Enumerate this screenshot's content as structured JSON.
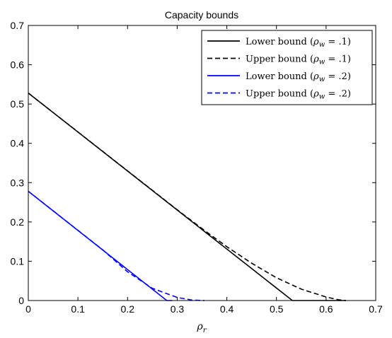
{
  "chart_data": {
    "type": "line",
    "title": "Capacity bounds",
    "xlabel": "ρ_r",
    "xlabel_main": "ρ",
    "xlabel_sub": "r",
    "ylabel": "",
    "xlim": [
      0,
      0.7
    ],
    "ylim": [
      0,
      0.7
    ],
    "xticks": [
      "0",
      "0.1",
      "0.2",
      "0.3",
      "0.4",
      "0.5",
      "0.6",
      "0.7"
    ],
    "yticks": [
      "0",
      "0.1",
      "0.2",
      "0.3",
      "0.4",
      "0.5",
      "0.6",
      "0.7"
    ],
    "grid": false,
    "legend_position": "top-right",
    "series": [
      {
        "name": "Lower bound (ρ_w = .1)",
        "legend_main": "Lower bound (",
        "legend_sub": "w",
        "legend_tail": " = .1)",
        "color": "#000000",
        "style": "solid",
        "x": [
          0,
          0.532,
          0.64
        ],
        "y": [
          0.528,
          0,
          0
        ]
      },
      {
        "name": "Upper bound (ρ_w = .1)",
        "legend_main": "Upper bound (",
        "legend_sub": "w",
        "legend_tail": " = .1)",
        "color": "#000000",
        "style": "dashed",
        "x": [
          0,
          0.3,
          0.35,
          0.4,
          0.45,
          0.5,
          0.55,
          0.6,
          0.625,
          0.64
        ],
        "y": [
          0.528,
          0.231,
          0.183,
          0.137,
          0.095,
          0.058,
          0.029,
          0.009,
          0.002,
          0
        ]
      },
      {
        "name": "Lower bound (ρ_w = .2)",
        "legend_main": "Lower bound (",
        "legend_sub": "w",
        "legend_tail": " = .2)",
        "color": "#0000ff",
        "style": "solid",
        "x": [
          0,
          0.279,
          0.29
        ],
        "y": [
          0.278,
          0,
          0
        ]
      },
      {
        "name": "Upper bound (ρ_w = .2)",
        "legend_main": "Upper bound (",
        "legend_sub": "w",
        "legend_tail": " = .2)",
        "color": "#0000ff",
        "style": "dashed",
        "x": [
          0,
          0.15,
          0.2,
          0.25,
          0.3,
          0.33,
          0.355
        ],
        "y": [
          0.278,
          0.129,
          0.073,
          0.031,
          0.008,
          0.001,
          0
        ]
      }
    ]
  }
}
